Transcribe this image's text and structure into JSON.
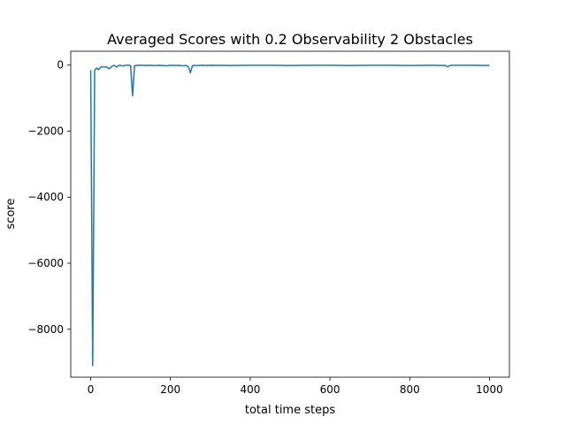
{
  "chart_data": {
    "type": "line",
    "title": "Averaged Scores with 0.2 Observability 2 Obstacles",
    "xlabel": "total time steps",
    "ylabel": "score",
    "xlim": [
      -50,
      1050
    ],
    "ylim": [
      -9450,
      420
    ],
    "xticks": [
      0,
      200,
      400,
      600,
      800,
      1000
    ],
    "xtick_labels": [
      "0",
      "200",
      "400",
      "600",
      "800",
      "1000"
    ],
    "yticks": [
      0,
      -2000,
      -4000,
      -6000,
      -8000
    ],
    "ytick_labels": [
      "0",
      "−2000",
      "−4000",
      "−6000",
      "−8000"
    ],
    "grid": false,
    "legend": "none",
    "series": [
      {
        "color": "#1f77b4",
        "x": [
          0,
          5,
          10,
          15,
          20,
          25,
          30,
          35,
          40,
          45,
          50,
          55,
          60,
          65,
          70,
          75,
          80,
          85,
          90,
          95,
          100,
          105,
          110,
          115,
          120,
          130,
          140,
          150,
          160,
          170,
          180,
          190,
          200,
          210,
          220,
          230,
          240,
          245,
          250,
          255,
          260,
          270,
          280,
          290,
          300,
          350,
          400,
          450,
          500,
          550,
          600,
          650,
          700,
          750,
          800,
          850,
          890,
          895,
          900,
          905,
          950,
          1000
        ],
        "y": [
          -150,
          -9100,
          -150,
          -90,
          -140,
          -60,
          -50,
          -60,
          -50,
          -110,
          -80,
          -20,
          -10,
          -60,
          -10,
          -5,
          -30,
          -10,
          -5,
          -5,
          -10,
          -930,
          -20,
          -10,
          -5,
          -5,
          -10,
          -5,
          -15,
          -5,
          -10,
          -20,
          -5,
          -10,
          -5,
          -20,
          -10,
          -50,
          -230,
          -20,
          -10,
          -10,
          -5,
          -10,
          -5,
          -10,
          -5,
          -5,
          -10,
          -5,
          -5,
          -10,
          -5,
          -5,
          -10,
          -5,
          -10,
          -50,
          -20,
          -5,
          -5,
          -10
        ]
      }
    ]
  }
}
